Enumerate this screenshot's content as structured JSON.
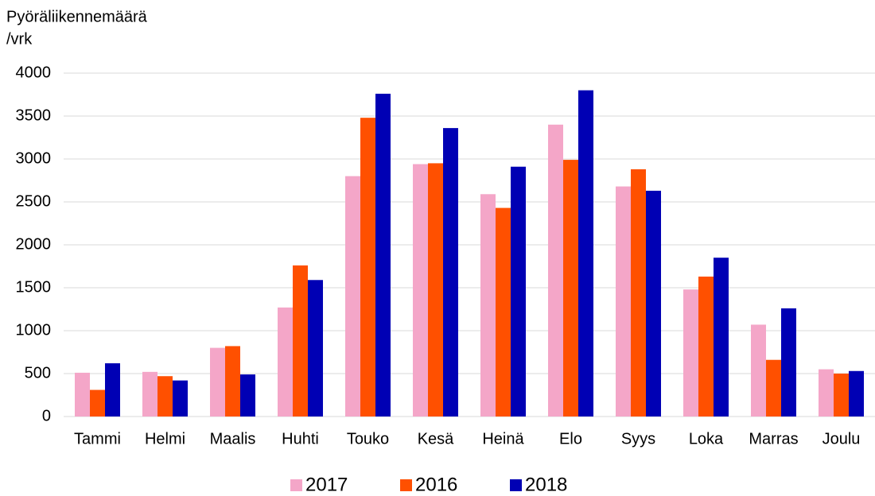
{
  "chart_data": {
    "type": "bar",
    "ylabel": [
      "Pyöräliikennemäärä",
      "/vrk"
    ],
    "categories": [
      "Tammi",
      "Helmi",
      "Maalis",
      "Huhti",
      "Touko",
      "Kesä",
      "Heinä",
      "Elo",
      "Syys",
      "Loka",
      "Marras",
      "Joulu"
    ],
    "series": [
      {
        "name": "2017",
        "color": "#f4a6c8",
        "values": [
          510,
          520,
          800,
          1270,
          2800,
          2940,
          2590,
          3400,
          2680,
          1480,
          1070,
          550
        ]
      },
      {
        "name": "2016",
        "color": "#ff5000",
        "values": [
          310,
          470,
          820,
          1760,
          3480,
          2950,
          2430,
          2990,
          2880,
          1630,
          660,
          500
        ]
      },
      {
        "name": "2018",
        "color": "#0000b4",
        "values": [
          620,
          420,
          490,
          1590,
          3760,
          3360,
          2910,
          3800,
          2630,
          1850,
          1260,
          530
        ]
      }
    ],
    "ylim": [
      0,
      4000
    ],
    "yticks": [
      0,
      500,
      1000,
      1500,
      2000,
      2500,
      3000,
      3500,
      4000
    ],
    "grid": true,
    "legend": "bottom"
  }
}
